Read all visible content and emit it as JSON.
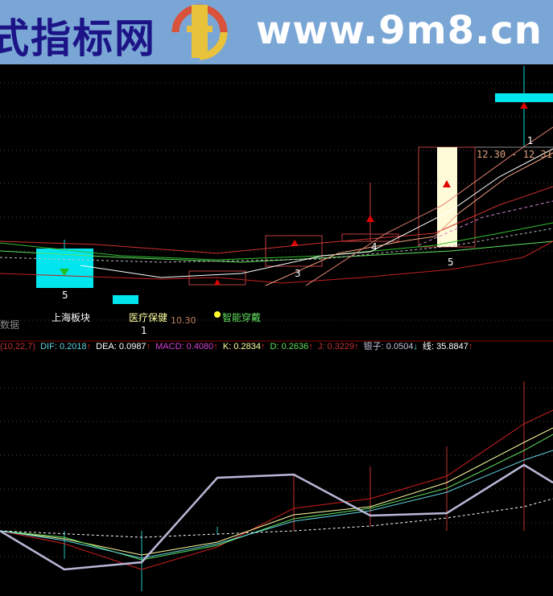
{
  "banner": {
    "title": "式指标网",
    "site": "www.9m8.cn",
    "logo_text": "www.9m8.cn"
  },
  "main_chart": {
    "candle_labels": [
      "5",
      "1",
      "3",
      "4",
      "5",
      "1"
    ],
    "date_range": "12.30 - 12.31",
    "small_value": "10.30",
    "tags": [
      "上海板块",
      "医疗保健",
      "智能穿戴"
    ],
    "left_label": "数据"
  },
  "indicator_bar": {
    "params": "(10,22,7)",
    "items": [
      {
        "label": "DIF:",
        "value": "0.2018",
        "arrow": "↑",
        "color": "#5fd3e0"
      },
      {
        "label": "DEA:",
        "value": "0.0987",
        "arrow": "↑",
        "color": "#ffffff"
      },
      {
        "label": "MACD:",
        "value": "0.4080",
        "arrow": "↑",
        "color": "#d040d0"
      },
      {
        "label": "K:",
        "value": "0.2834",
        "arrow": "↑",
        "color": "#ffffa0"
      },
      {
        "label": "D:",
        "value": "0.2636",
        "arrow": "↑",
        "color": "#60e060"
      },
      {
        "label": "J:",
        "value": "0.3229",
        "arrow": "↑",
        "color": "#c03030"
      },
      {
        "label": "银子:",
        "value": "0.0504",
        "arrow": "↓",
        "color": "#c0c0d8"
      },
      {
        "label": "线:",
        "value": "35.8847",
        "arrow": "↑",
        "color": "#ffffff"
      }
    ]
  }
}
